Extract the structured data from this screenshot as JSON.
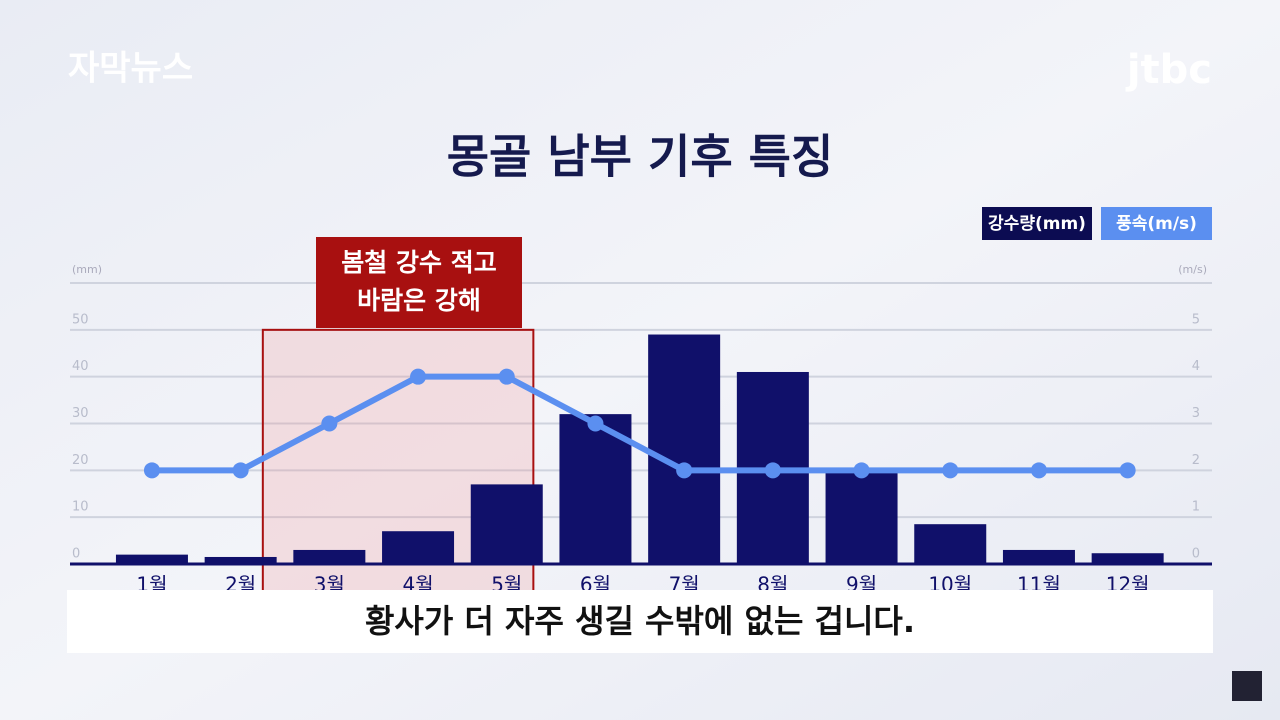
{
  "header": {
    "program": "자막뉴스",
    "logo": "jtbc"
  },
  "chart_data": {
    "type": "bar",
    "title": "몽골 남부 기후 특징",
    "categories": [
      "1월",
      "2월",
      "3월",
      "4월",
      "5월",
      "6월",
      "7월",
      "8월",
      "9월",
      "10월",
      "11월",
      "12월"
    ],
    "series": [
      {
        "name": "강수량(mm)",
        "type": "bar",
        "color": "#10106a",
        "values": [
          2,
          1.5,
          3,
          7,
          17,
          32,
          49,
          41,
          20,
          8.5,
          3,
          2.3
        ]
      },
      {
        "name": "풍속(m/s)",
        "type": "line",
        "axis": "y2",
        "color": "#5b8ff0",
        "values": [
          2,
          2,
          3,
          4,
          4,
          3,
          2,
          2,
          2,
          2,
          2,
          2
        ]
      }
    ],
    "y_label": "(mm)",
    "y2_label": "(m/s)",
    "ylim": [
      0,
      60
    ],
    "yticks": [
      0,
      10,
      20,
      30,
      40,
      50
    ],
    "y2lim": [
      0,
      6
    ],
    "y2ticks": [
      0,
      1,
      2,
      3,
      4,
      5
    ],
    "grid": true,
    "annotation": [
      "봄철 강수 적고",
      "바람은 강해"
    ]
  },
  "caption": "황사가 더 자주 생길 수밖에 없는 겁니다."
}
